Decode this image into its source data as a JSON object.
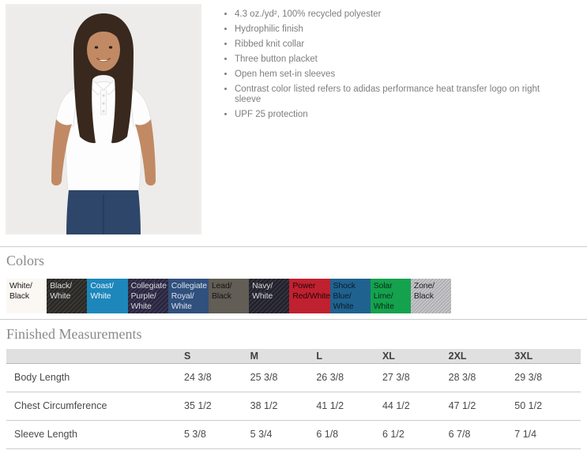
{
  "product": {
    "photo_description": "Woman with long dark hair modeling a white short-sleeve polo shirt with navy pants",
    "features": [
      "4.3 oz./yd², 100% recycled polyester",
      "Hydrophilic finish",
      "Ribbed knit collar",
      "Three button placket",
      "Open hem set-in sleeves",
      "Contrast color listed refers to adidas performance heat transfer logo on right sleeve",
      "UPF 25 protection"
    ]
  },
  "colors_section": {
    "heading": "Colors",
    "swatches": [
      {
        "label": "White/\nBlack",
        "bg": "#fbf8f3",
        "text_color": "#1c1c1c",
        "texture": "none"
      },
      {
        "label": "Black/\nWhite",
        "bg": "#2b2a27",
        "text_color": "#dcdcdc",
        "texture": "heather"
      },
      {
        "label": "Coast/\nWhite",
        "bg": "#1d87bb",
        "text_color": "#eef5f9",
        "texture": "none"
      },
      {
        "label": "Collegiate\nPurple/\nWhite",
        "bg": "#2c2743",
        "text_color": "#d6d5de",
        "texture": "heather"
      },
      {
        "label": "Collegiate\nRoyal/\nWhite",
        "bg": "#30507d",
        "text_color": "#dbe2ec",
        "texture": "none"
      },
      {
        "label": "Lead/\nBlack",
        "bg": "#625d55",
        "text_color": "#141414",
        "texture": "none"
      },
      {
        "label": "Navy/\nWhite",
        "bg": "#24232e",
        "text_color": "#d6d6da",
        "texture": "heather"
      },
      {
        "label": "Power\nRed/White",
        "bg": "#c02130",
        "text_color": "#240608",
        "texture": "none"
      },
      {
        "label": "Shock\nBlue/\nWhite",
        "bg": "#20628f",
        "text_color": "#0a1d2c",
        "texture": "none"
      },
      {
        "label": "Solar\nLime/\nWhite",
        "bg": "#15a24e",
        "text_color": "#052e17",
        "texture": "none"
      },
      {
        "label": "Zone/\nBlack",
        "bg": "#b6b5b9",
        "text_color": "#222222",
        "texture": "stripes"
      }
    ]
  },
  "measurements": {
    "heading": "Finished Measurements",
    "columns": [
      "S",
      "M",
      "L",
      "XL",
      "2XL",
      "3XL"
    ],
    "rows": [
      {
        "label": "Body Length",
        "values": [
          "24 3/8",
          "25 3/8",
          "26 3/8",
          "27 3/8",
          "28 3/8",
          "29 3/8"
        ]
      },
      {
        "label": "Chest Circumference",
        "values": [
          "35 1/2",
          "38 1/2",
          "41 1/2",
          "44 1/2",
          "47 1/2",
          "50 1/2"
        ]
      },
      {
        "label": "Sleeve Length",
        "values": [
          "5 3/8",
          "5 3/4",
          "6 1/8",
          "6 1/2",
          "6 7/8",
          "7 1/4"
        ]
      }
    ]
  }
}
